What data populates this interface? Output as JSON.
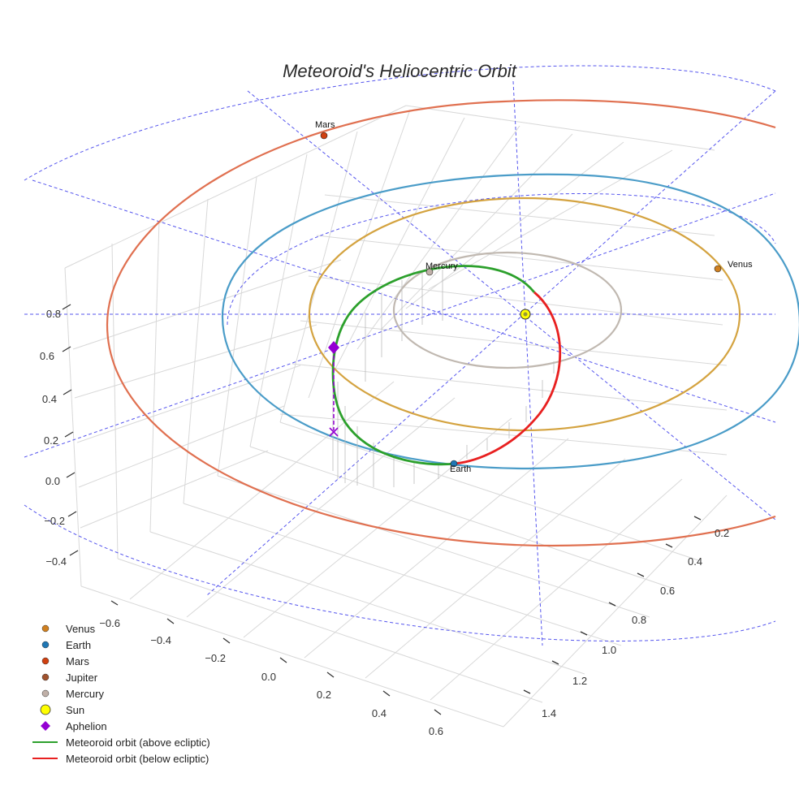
{
  "chart_data": {
    "type": "line3d",
    "title": "Meteoroid's Heliocentric Orbit",
    "x_ticks": [
      "−0.6",
      "−0.4",
      "−0.2",
      "0.0",
      "0.2",
      "0.4",
      "0.6"
    ],
    "y_ticks": [
      "0.2",
      "0.4",
      "0.6",
      "0.8",
      "1.0",
      "1.2",
      "1.4"
    ],
    "z_ticks": [
      "0.8",
      "0.6",
      "0.4",
      "0.2",
      "0.0",
      "−0.2",
      "−0.4"
    ],
    "orbits": [
      {
        "name": "Mercury orbit",
        "color": "#c0b8b0",
        "semi_major_au": 0.39
      },
      {
        "name": "Venus orbit",
        "color": "#d4a340",
        "semi_major_au": 0.72
      },
      {
        "name": "Earth orbit",
        "color": "#4a9cc8",
        "semi_major_au": 1.0
      },
      {
        "name": "Mars orbit",
        "color": "#e07050",
        "semi_major_au": 1.52
      }
    ],
    "planets": [
      {
        "name": "Mercury",
        "label": "Mercury",
        "color": "#c0b0a8"
      },
      {
        "name": "Venus",
        "label": "Venus",
        "color": "#d08020"
      },
      {
        "name": "Earth",
        "label": "Earth",
        "color": "#1f77b4"
      },
      {
        "name": "Mars",
        "label": "Mars",
        "color": "#d04010"
      },
      {
        "name": "Sun",
        "label": "",
        "color": "#ffff00"
      }
    ],
    "series": [
      {
        "name": "Meteoroid orbit (above ecliptic)",
        "color": "#2ca02c"
      },
      {
        "name": "Meteoroid orbit (below ecliptic)",
        "color": "#e82020"
      }
    ],
    "legend": [
      {
        "label": "Venus",
        "kind": "dot",
        "color": "#d08020"
      },
      {
        "label": "Earth",
        "kind": "dot",
        "color": "#1f77b4"
      },
      {
        "label": "Mars",
        "kind": "dot",
        "color": "#d04010"
      },
      {
        "label": "Jupiter",
        "kind": "dot",
        "color": "#a0522d"
      },
      {
        "label": "Mercury",
        "kind": "dot",
        "color": "#c0b0a8"
      },
      {
        "label": "Sun",
        "kind": "bigdot",
        "color": "#ffff00"
      },
      {
        "label": "Aphelion",
        "kind": "diamond",
        "color": "#9400d3"
      },
      {
        "label": "Meteoroid orbit (above ecliptic)",
        "kind": "line",
        "color": "#2ca02c"
      },
      {
        "label": "Meteoroid orbit (below ecliptic)",
        "kind": "line",
        "color": "#e82020"
      }
    ],
    "legend_position": "bottom-left"
  }
}
